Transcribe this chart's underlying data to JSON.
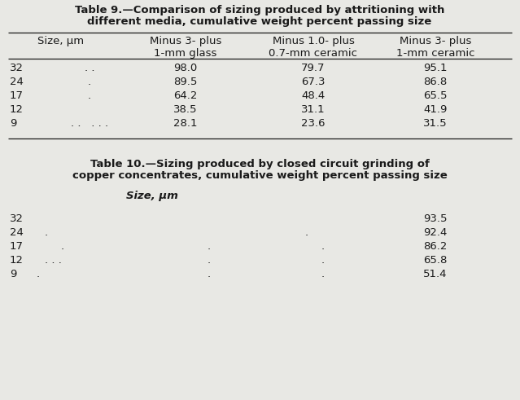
{
  "table9_title_line1": "Table 9.—Comparison of sizing produced by attritioning with",
  "table9_title_line2": "different media, cumulative weight percent passing size",
  "table9_col_headers": [
    "Size, μm",
    "Minus 3- plus\n1-mm glass",
    "Minus 1.0- plus\n0.7-mm ceramic",
    "Minus 3- plus\n1-mm ceramic"
  ],
  "table9_rows": [
    [
      "32",
      ". .",
      "98.0",
      "79.7",
      "95.1"
    ],
    [
      "24",
      ".",
      "89.5",
      "67.3",
      "86.8"
    ],
    [
      "17",
      ".",
      "64.2",
      "48.4",
      "65.5"
    ],
    [
      "12",
      "",
      "38.5",
      "31.1",
      "41.9"
    ],
    [
      "9",
      ". .   . . .",
      "28.1",
      "23.6",
      "31.5"
    ]
  ],
  "table10_title_line1": "Table 10.—Sizing produced by closed circuit grinding of",
  "table10_title_line2": "copper concentrates, cumulative weight percent passing size",
  "table10_col_header": "Size, μm",
  "table10_rows": [
    [
      "32",
      "",
      "",
      "",
      "93.5"
    ],
    [
      "24",
      ".",
      "",
      ".",
      "92.4"
    ],
    [
      "17",
      ".",
      ".",
      ".",
      "86.2"
    ],
    [
      "12",
      ". . .",
      ".",
      ".",
      "65.8"
    ],
    [
      "9",
      ".",
      ".",
      ".",
      "51.4"
    ]
  ],
  "bg_color": "#e8e8e4",
  "text_color": "#1a1a1a",
  "title_fontsize": 9.5,
  "body_fontsize": 9.5,
  "header_fontsize": 9.5
}
